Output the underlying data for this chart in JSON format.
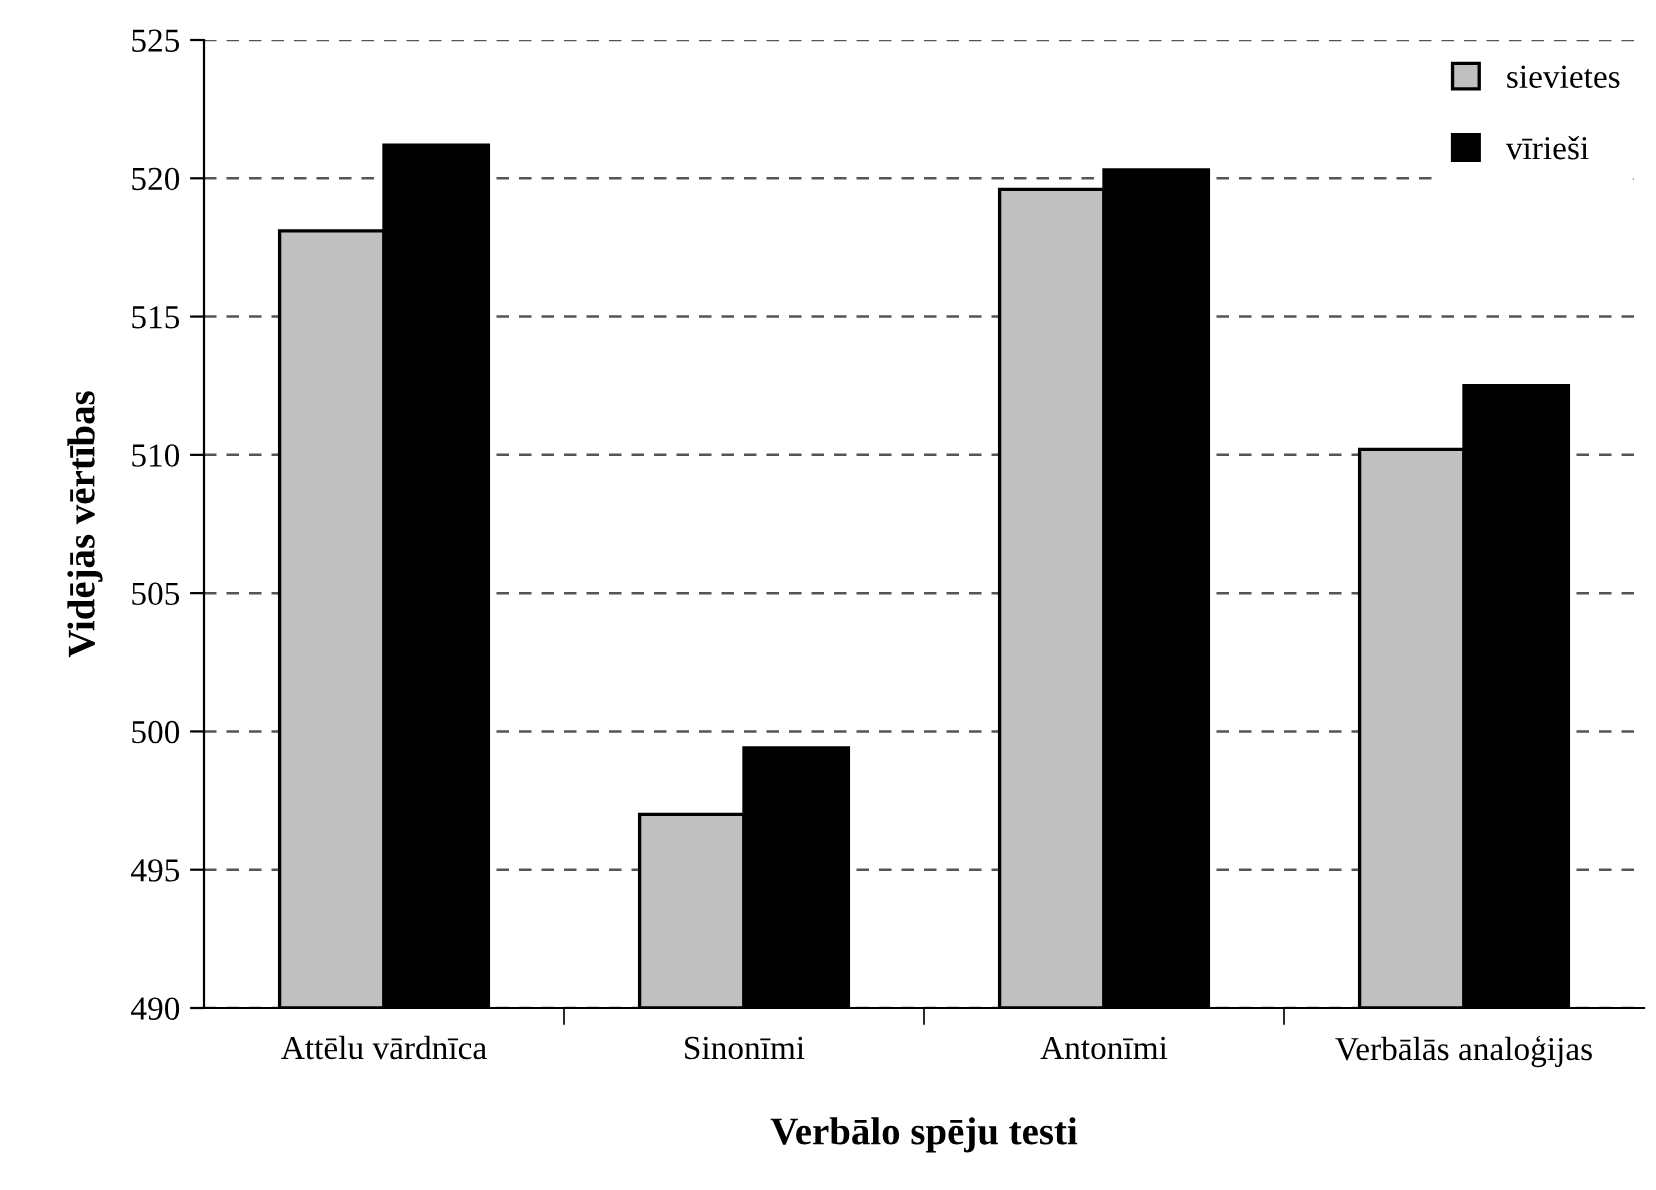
{
  "chart_data": {
    "type": "bar",
    "xlabel": "Verbālo spēju testi",
    "ylabel": "Vidējās vērtības",
    "categories": [
      "Attēlu vārdnīca",
      "Sinonīmi",
      "Antonīmi",
      "Verbālās analoģijas"
    ],
    "series": [
      {
        "name": "sievietes",
        "color": "#c0c0c0",
        "values": [
          518.1,
          497.0,
          519.6,
          510.2
        ]
      },
      {
        "name": "vīrieši",
        "color": "#000000",
        "values": [
          521.2,
          499.4,
          520.3,
          512.5
        ]
      }
    ],
    "ylim": [
      490,
      525
    ],
    "yticks": [
      490,
      495,
      500,
      505,
      510,
      515,
      520,
      525
    ],
    "grid": "y",
    "legend": "top right"
  }
}
